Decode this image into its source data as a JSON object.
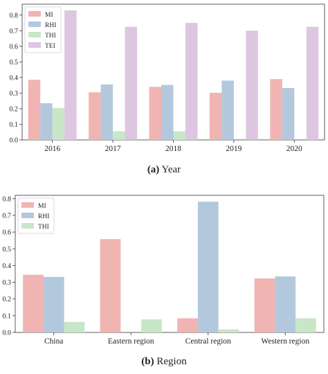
{
  "colors": {
    "MI": "#f0b5b2",
    "RHI": "#b3c8dd",
    "THI": "#c9e6c8",
    "TEI": "#dcc6e0"
  },
  "captions": [
    {
      "tag": "(a)",
      "text": "Year"
    },
    {
      "tag": "(b)",
      "text": "Region"
    }
  ],
  "chart_data": [
    {
      "type": "bar",
      "title": "",
      "xlabel": "",
      "ylabel": "",
      "categories": [
        "2016",
        "2017",
        "2018",
        "2019",
        "2020"
      ],
      "series": [
        {
          "name": "MI",
          "values": [
            0.385,
            0.305,
            0.34,
            0.302,
            0.39
          ]
        },
        {
          "name": "RHI",
          "values": [
            0.235,
            0.355,
            0.352,
            0.38,
            0.333
          ]
        },
        {
          "name": "THI",
          "values": [
            0.205,
            0.055,
            0.055,
            0.0,
            0.0
          ]
        },
        {
          "name": "TEI",
          "values": [
            0.83,
            0.725,
            0.75,
            0.7,
            0.725
          ]
        }
      ],
      "ylim": [
        0,
        0.87
      ],
      "yticks": [
        "0.0",
        "0.1",
        "0.2",
        "0.3",
        "0.4",
        "0.5",
        "0.6",
        "0.7",
        "0.8"
      ],
      "legend": "top-left",
      "grid": false
    },
    {
      "type": "bar",
      "title": "",
      "xlabel": "",
      "ylabel": "",
      "categories": [
        "China",
        "Eastern region",
        "Central region",
        "Western region"
      ],
      "series": [
        {
          "name": "MI",
          "values": [
            0.345,
            0.558,
            0.085,
            0.323
          ]
        },
        {
          "name": "RHI",
          "values": [
            0.332,
            0.0,
            0.782,
            0.335
          ]
        },
        {
          "name": "THI",
          "values": [
            0.063,
            0.078,
            0.018,
            0.085
          ]
        }
      ],
      "ylim": [
        0,
        0.82
      ],
      "yticks": [
        "0.0",
        "0.1",
        "0.2",
        "0.3",
        "0.4",
        "0.5",
        "0.6",
        "0.7",
        "0.8"
      ],
      "legend": "top-left",
      "grid": false
    }
  ]
}
